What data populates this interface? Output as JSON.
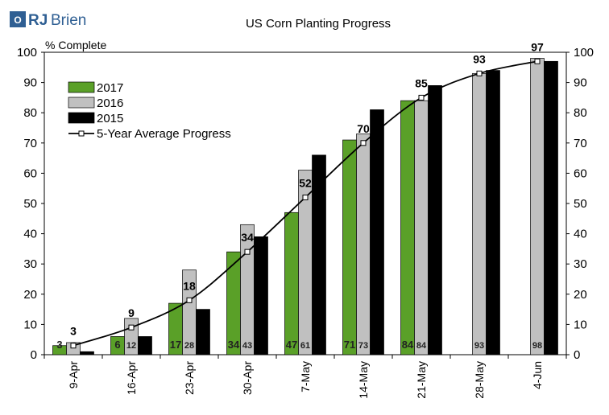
{
  "brand": {
    "name": "RJO'Brien",
    "logo_rj": "RJ",
    "logo_o": "O",
    "logo_brien": "Brien",
    "color": "#2f5f93"
  },
  "chart_data": {
    "type": "bar",
    "title": "US Corn Planting Progress",
    "ylabel": "% Complete",
    "ylim": [
      0,
      100
    ],
    "yticks": [
      0,
      10,
      20,
      30,
      40,
      50,
      60,
      70,
      80,
      90,
      100
    ],
    "y_axis_both_sides": true,
    "grid": false,
    "legend_position": "top-left",
    "categories": [
      "9-Apr",
      "16-Apr",
      "23-Apr",
      "30-Apr",
      "7-May",
      "14-May",
      "21-May",
      "28-May",
      "4-Jun"
    ],
    "series": [
      {
        "name": "2017",
        "type": "bar",
        "color": "#5aa028",
        "values": [
          3,
          6,
          17,
          34,
          47,
          71,
          84,
          null,
          null
        ],
        "labels": [
          "3",
          "6",
          "17",
          "34",
          "47",
          "71",
          "84",
          "",
          ""
        ]
      },
      {
        "name": "2016",
        "type": "bar",
        "color": "#c0c0c0",
        "values": [
          4,
          12,
          28,
          43,
          61,
          73,
          84,
          93,
          98
        ],
        "labels": [
          "4",
          "12",
          "28",
          "43",
          "61",
          "73",
          "84",
          "93",
          "98"
        ]
      },
      {
        "name": "2015",
        "type": "bar",
        "color": "#000000",
        "values": [
          1,
          6,
          15,
          39,
          66,
          81,
          89,
          94,
          97
        ]
      },
      {
        "name": "5-Year Average Progress",
        "type": "line",
        "color": "#000000",
        "values": [
          3,
          9,
          18,
          34,
          52,
          70,
          85,
          93,
          97
        ],
        "labels": [
          "3",
          "9",
          "18",
          "34",
          "52",
          "70",
          "85",
          "93",
          "97"
        ]
      }
    ]
  }
}
